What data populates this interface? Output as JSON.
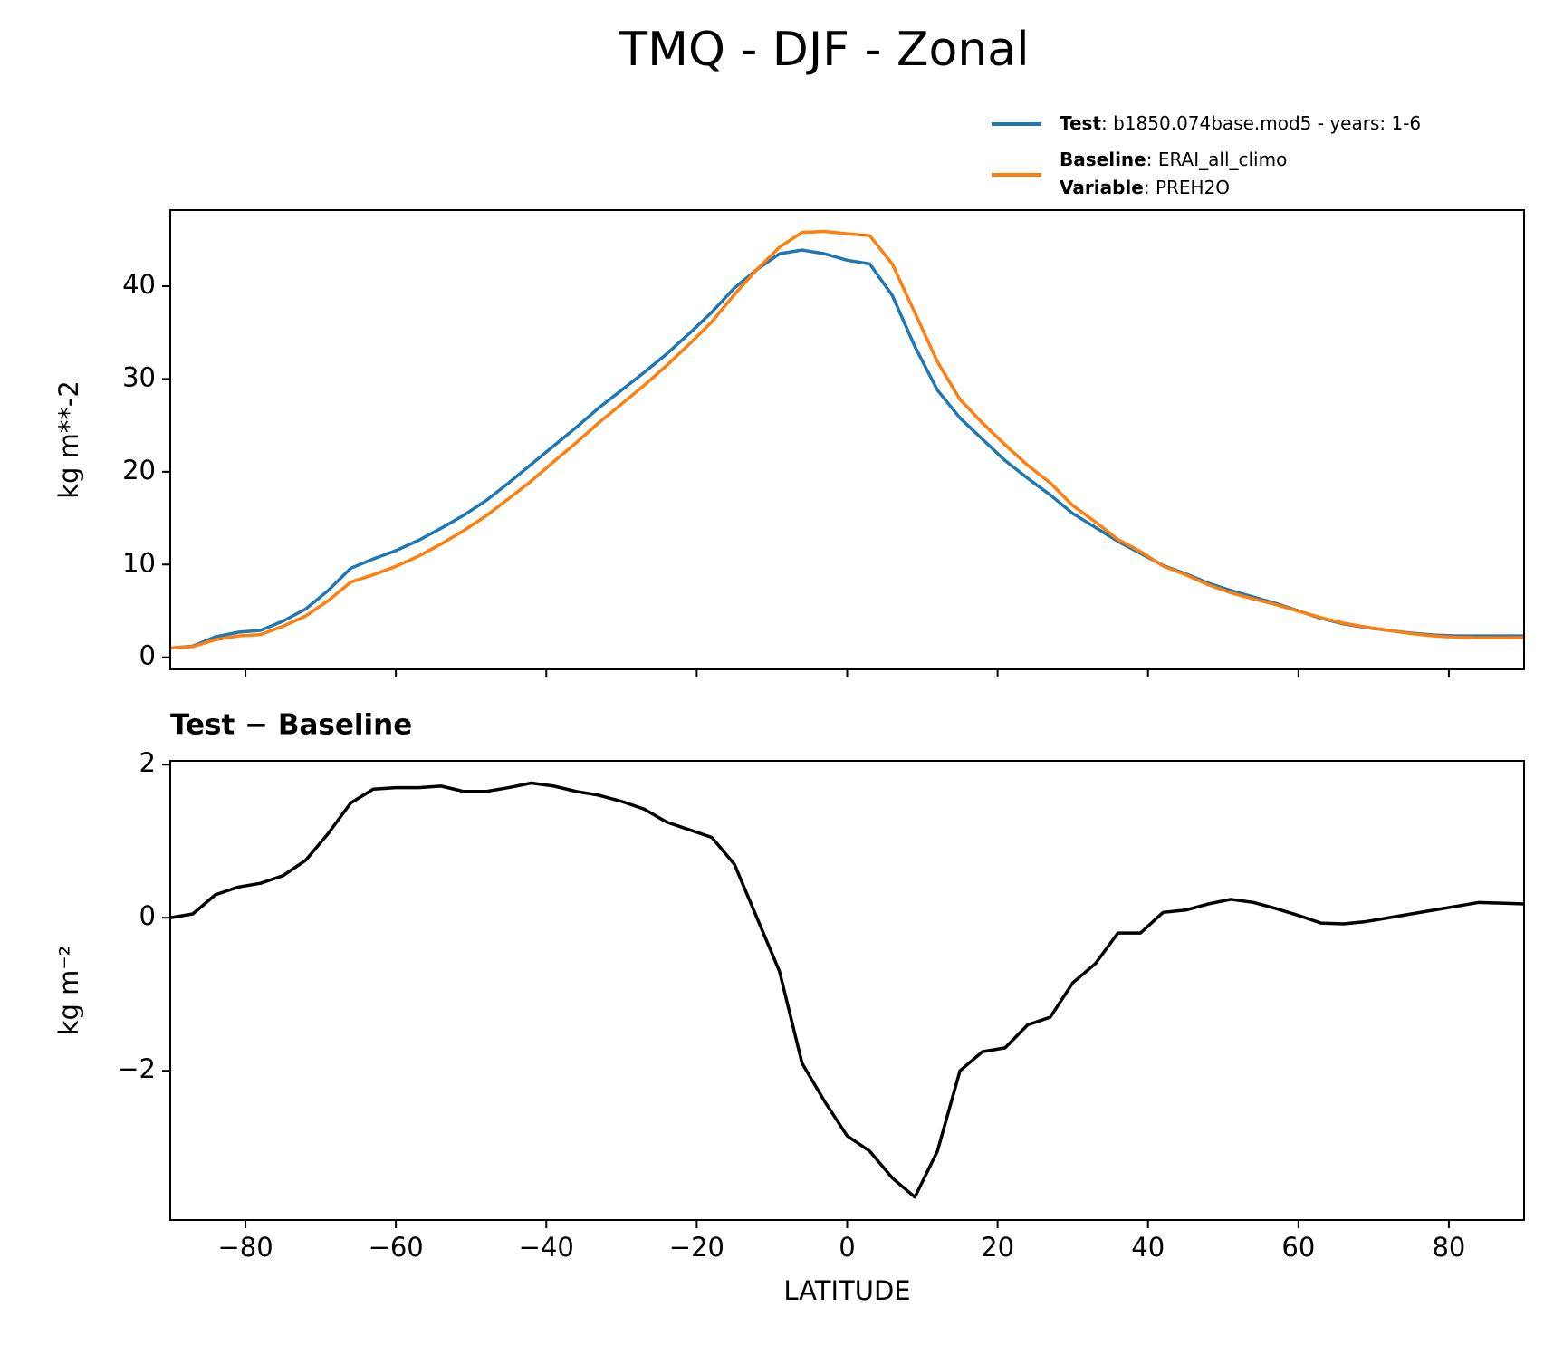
{
  "title": "TMQ - DJF - Zonal",
  "chart_data": [
    {
      "type": "line",
      "ylabel": "kg m**-2",
      "x": [
        -90,
        -87,
        -84,
        -81,
        -78,
        -75,
        -72,
        -69,
        -66,
        -63,
        -60,
        -57,
        -54,
        -51,
        -48,
        -45,
        -42,
        -39,
        -36,
        -33,
        -30,
        -27,
        -24,
        -21,
        -18,
        -15,
        -12,
        -9,
        -6,
        -3,
        0,
        3,
        6,
        9,
        12,
        15,
        18,
        21,
        24,
        27,
        30,
        33,
        36,
        39,
        42,
        45,
        48,
        51,
        54,
        57,
        60,
        63,
        66,
        69,
        72,
        75,
        78,
        81,
        84,
        87,
        90
      ],
      "series": [
        {
          "name": "Test",
          "description": ": b1850.074base.mod5 - years: 1-6",
          "color": "#1f77b4",
          "values": [
            1.0,
            1.2,
            2.2,
            2.7,
            2.9,
            3.9,
            5.2,
            7.2,
            9.6,
            10.6,
            11.5,
            12.6,
            13.9,
            15.3,
            16.9,
            18.8,
            20.8,
            22.8,
            24.8,
            26.9,
            28.8,
            30.7,
            32.7,
            34.9,
            37.2,
            39.8,
            41.8,
            43.5,
            43.9,
            43.5,
            42.8,
            42.4,
            39.0,
            33.5,
            28.8,
            25.8,
            23.5,
            21.2,
            19.3,
            17.5,
            15.5,
            14.0,
            12.5,
            11.2,
            9.9,
            9.0,
            8.0,
            7.2,
            6.5,
            5.8,
            5.0,
            4.2,
            3.6,
            3.2,
            2.9,
            2.6,
            2.4,
            2.3,
            2.3,
            2.3,
            2.3
          ]
        },
        {
          "name": "Baseline",
          "description": ": ERAI_all_climo",
          "variable_name": "Variable",
          "variable": ": PREH2O",
          "color": "#ff7f0e",
          "values": [
            1.0,
            1.15,
            1.9,
            2.3,
            2.45,
            3.35,
            4.45,
            6.1,
            8.1,
            8.9,
            9.8,
            10.9,
            12.2,
            13.65,
            15.25,
            17.1,
            19.0,
            21.1,
            23.15,
            25.3,
            27.3,
            29.3,
            31.45,
            33.75,
            36.15,
            39.1,
            41.8,
            44.2,
            45.8,
            45.9,
            45.65,
            45.45,
            42.4,
            37.15,
            31.85,
            27.8,
            25.25,
            22.9,
            20.7,
            18.8,
            16.35,
            14.6,
            12.7,
            11.4,
            9.83,
            8.9,
            7.82,
            6.96,
            6.3,
            5.68,
            4.97,
            4.27,
            3.68,
            3.25,
            2.9,
            2.55,
            2.3,
            2.15,
            2.1,
            2.11,
            2.12
          ]
        }
      ],
      "xlim": [
        -90,
        90
      ],
      "xticks": [
        -80,
        -60,
        -40,
        -20,
        0,
        20,
        40,
        60,
        80
      ],
      "ylim": [
        -1.3,
        48.2
      ],
      "yticks": [
        0,
        10,
        20,
        30,
        40
      ]
    },
    {
      "type": "line",
      "title": "Test − Baseline",
      "xlabel": "LATITUDE",
      "ylabel": "kg m⁻²",
      "x": [
        -90,
        -87,
        -84,
        -81,
        -78,
        -75,
        -72,
        -69,
        -66,
        -63,
        -60,
        -57,
        -54,
        -51,
        -48,
        -45,
        -42,
        -39,
        -36,
        -33,
        -30,
        -27,
        -24,
        -21,
        -18,
        -15,
        -12,
        -9,
        -6,
        -3,
        0,
        3,
        6,
        9,
        12,
        15,
        18,
        21,
        24,
        27,
        30,
        33,
        36,
        39,
        42,
        45,
        48,
        51,
        54,
        57,
        60,
        63,
        66,
        69,
        72,
        75,
        78,
        81,
        84,
        87,
        90
      ],
      "series": [
        {
          "color": "#000000",
          "values": [
            0,
            0.05,
            0.3,
            0.4,
            0.45,
            0.55,
            0.75,
            1.1,
            1.5,
            1.68,
            1.7,
            1.7,
            1.72,
            1.65,
            1.65,
            1.7,
            1.76,
            1.72,
            1.65,
            1.6,
            1.52,
            1.42,
            1.25,
            1.15,
            1.05,
            0.7,
            0,
            -0.7,
            -1.9,
            -2.4,
            -2.85,
            -3.05,
            -3.4,
            -3.65,
            -3.05,
            -2.0,
            -1.75,
            -1.7,
            -1.4,
            -1.3,
            -0.85,
            -0.6,
            -0.2,
            -0.2,
            0.07,
            0.1,
            0.18,
            0.24,
            0.2,
            0.12,
            0.03,
            -0.07,
            -0.08,
            -0.05,
            0,
            0.05,
            0.1,
            0.15,
            0.2,
            0.19,
            0.18
          ]
        }
      ],
      "xlim": [
        -90,
        90
      ],
      "xticks": [
        {
          "value": -80,
          "label": "−80"
        },
        {
          "value": -60,
          "label": "−60"
        },
        {
          "value": -40,
          "label": "−40"
        },
        {
          "value": -20,
          "label": "−20"
        },
        0,
        20,
        40,
        60,
        80
      ],
      "ylim": [
        -3.95,
        2.05
      ],
      "yticks": [
        {
          "value": -2,
          "label": "−2"
        },
        0,
        2
      ]
    }
  ]
}
